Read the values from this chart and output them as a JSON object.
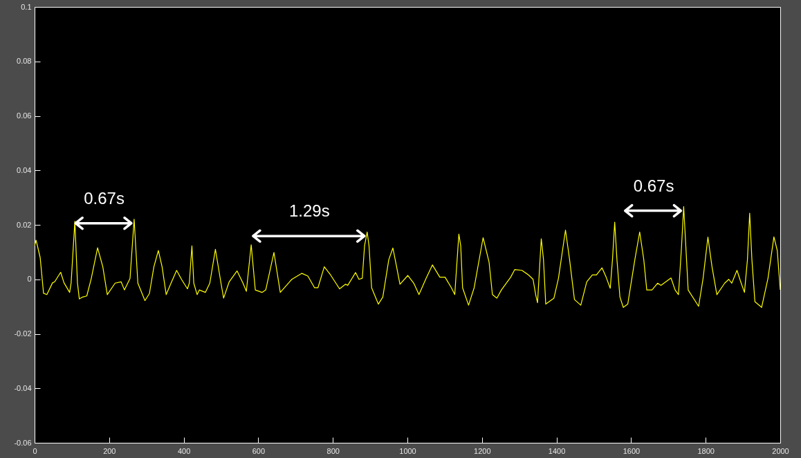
{
  "chart_data": {
    "type": "line",
    "xlim": [
      0,
      2000
    ],
    "xticks": [
      0,
      200,
      400,
      600,
      800,
      1000,
      1200,
      1400,
      1600,
      1800,
      2000
    ],
    "ylim": [
      -0.06,
      0.1
    ],
    "yticks": [
      -0.06,
      -0.04,
      -0.02,
      0,
      0.02,
      0.04,
      0.06,
      0.08,
      0.1
    ],
    "grid": false,
    "marker": "none",
    "line_style": "solid",
    "x": [
      0,
      4,
      15,
      24,
      33,
      48,
      54,
      70,
      79,
      94,
      98,
      108,
      115,
      120,
      129,
      140,
      152,
      169,
      183,
      195,
      216,
      232,
      241,
      256,
      267,
      277,
      296,
      308,
      320,
      332,
      342,
      353,
      366,
      381,
      394,
      410,
      415,
      422,
      427,
      436,
      442,
      458,
      470,
      485,
      500,
      507,
      522,
      543,
      559,
      568,
      581,
      592,
      610,
      620,
      642,
      659,
      684,
      690,
      717,
      733,
      751,
      760,
      777,
      794,
      818,
      834,
      840,
      861,
      870,
      879,
      885,
      892,
      897,
      904,
      922,
      934,
      950,
      961,
      971,
      980,
      1001,
      1017,
      1031,
      1050,
      1067,
      1087,
      1101,
      1118,
      1127,
      1138,
      1143,
      1148,
      1164,
      1179,
      1203,
      1219,
      1228,
      1240,
      1252,
      1277,
      1288,
      1307,
      1325,
      1337,
      1344,
      1349,
      1359,
      1365,
      1371,
      1380,
      1393,
      1405,
      1424,
      1435,
      1448,
      1465,
      1481,
      1496,
      1507,
      1522,
      1533,
      1544,
      1550,
      1556,
      1562,
      1570,
      1579,
      1591,
      1610,
      1623,
      1634,
      1642,
      1656,
      1671,
      1680,
      1707,
      1718,
      1727,
      1735,
      1741,
      1747,
      1753,
      1781,
      1793,
      1806,
      1817,
      1830,
      1851,
      1862,
      1870,
      1884,
      1893,
      1904,
      1912,
      1918,
      1924,
      1932,
      1950,
      1967,
      1983,
      1992,
      2000
    ],
    "series": [
      {
        "color": "#ffff00",
        "values": [
          0.0123,
          0.0144,
          0.008,
          -0.0051,
          -0.0056,
          -0.0013,
          -0.0009,
          0.0026,
          -0.0013,
          -0.0048,
          -0.0013,
          0.0213,
          -0.0013,
          -0.0072,
          -0.0065,
          -0.0061,
          0.0003,
          0.0116,
          0.0046,
          -0.0056,
          -0.0014,
          -0.0009,
          -0.0039,
          0.0003,
          0.0221,
          -0.0014,
          -0.0078,
          -0.0052,
          0.0046,
          0.0106,
          0.0046,
          -0.0056,
          -0.0014,
          0.0033,
          0,
          -0.0035,
          -0.0014,
          0.0123,
          -0.0014,
          -0.0056,
          -0.0039,
          -0.0048,
          -0.0014,
          0.011,
          -0.0014,
          -0.0069,
          -0.0009,
          0.0031,
          -0.0014,
          -0.0044,
          0.0127,
          -0.0039,
          -0.0048,
          -0.0039,
          0.0099,
          -0.0048,
          -0.0009,
          0,
          0.0022,
          0.0012,
          -0.0031,
          -0.0031,
          0.0046,
          0.0016,
          -0.0035,
          -0.0018,
          -0.0022,
          0.0025,
          0,
          0.0004,
          0.0123,
          0.0174,
          0.0123,
          -0.0031,
          -0.0091,
          -0.0065,
          0.0072,
          0.0115,
          0.0046,
          -0.0018,
          0.0014,
          -0.0014,
          -0.0056,
          0.0003,
          0.0053,
          0.0008,
          0.0008,
          -0.0031,
          -0.0056,
          0.0166,
          0.0123,
          -0.0031,
          -0.0095,
          -0.0031,
          0.0153,
          0.0063,
          -0.0056,
          -0.0069,
          -0.0039,
          0.0008,
          0.0036,
          0.0033,
          0.0016,
          0,
          -0.0056,
          -0.0086,
          0.0149,
          0.0072,
          -0.0091,
          -0.0082,
          -0.0069,
          0.0003,
          0.0181,
          0.0072,
          -0.0074,
          -0.0095,
          -0.0009,
          0.0016,
          0.0016,
          0.0042,
          0.0008,
          -0.0033,
          0.0072,
          0.021,
          0.0072,
          -0.0065,
          -0.0103,
          -0.0091,
          0.0072,
          0.0174,
          0.0072,
          -0.0039,
          -0.0039,
          -0.0014,
          -0.0022,
          0.0005,
          -0.0039,
          -0.0056,
          0.0115,
          0.0267,
          0.0115,
          -0.0039,
          -0.0099,
          0.0003,
          0.0155,
          0.0046,
          -0.0056,
          -0.0014,
          0,
          -0.0014,
          0.0033,
          -0.0005,
          -0.0048,
          0.0072,
          0.0243,
          0.0072,
          -0.0082,
          -0.0103,
          0.0003,
          0.0156,
          0.0106,
          -0.0039
        ]
      }
    ],
    "annotations": [
      {
        "text": "0.67s",
        "x": 267,
        "y": 0.0221
      },
      {
        "text": "1.29s",
        "x": 892,
        "y": 0.0174
      },
      {
        "text": "0.67s",
        "x": 1741,
        "y": 0.0267
      }
    ]
  }
}
